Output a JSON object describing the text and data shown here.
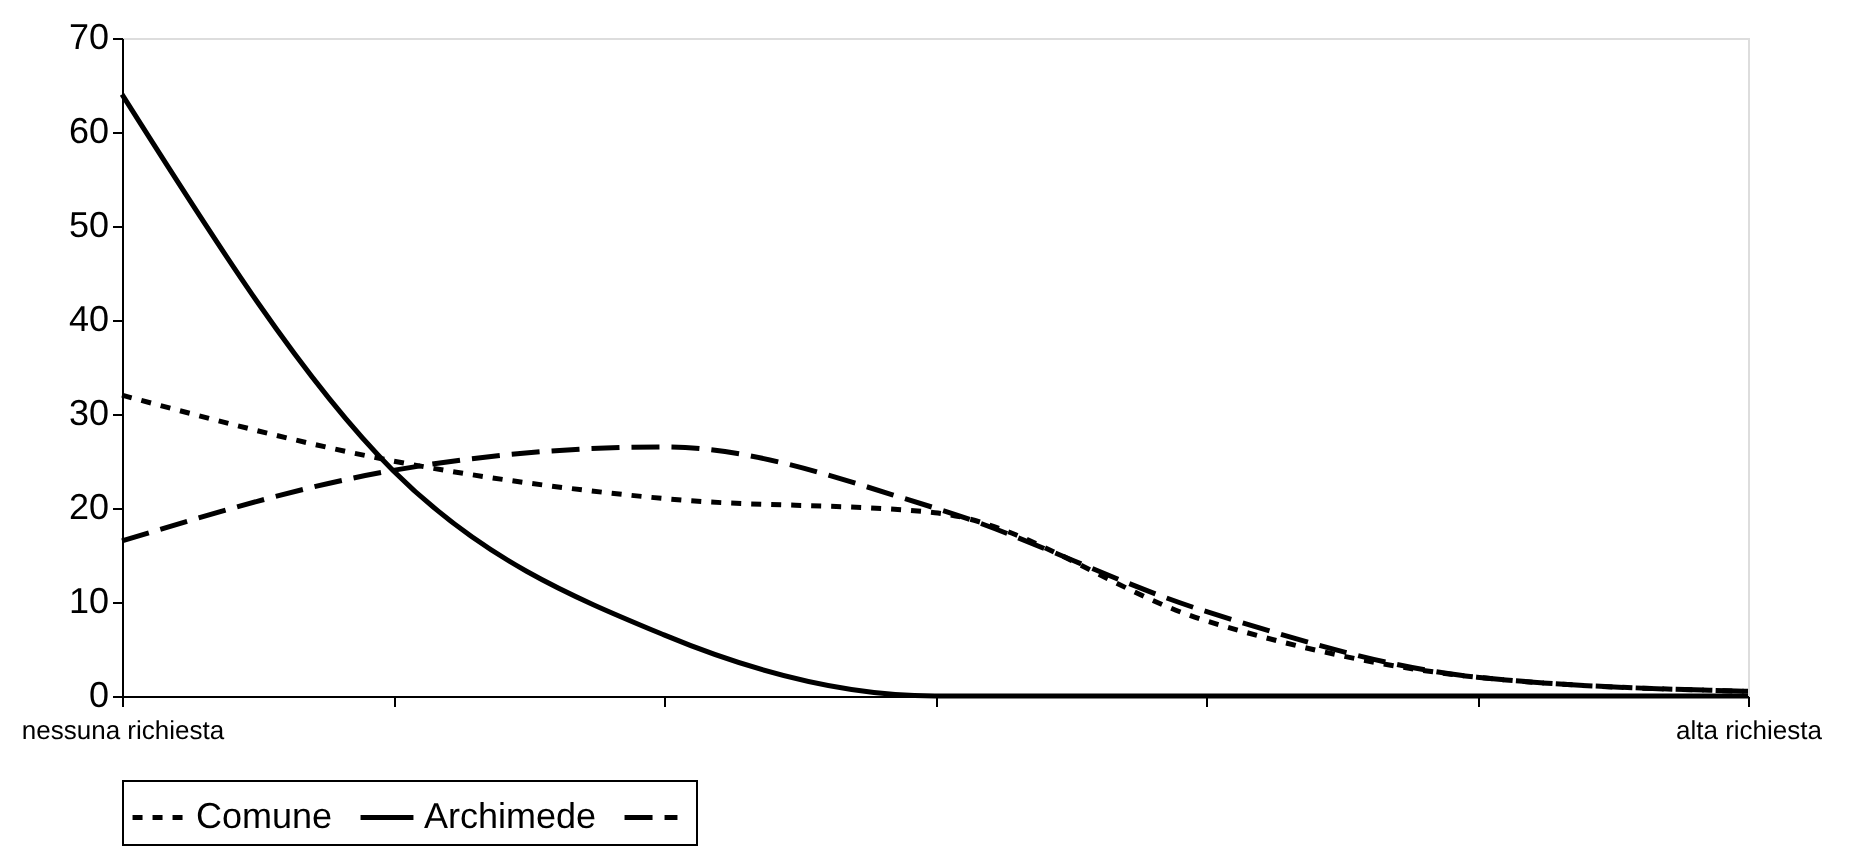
{
  "chart_data": {
    "type": "line",
    "categories": [
      "nessuna richiesta",
      null,
      null,
      null,
      null,
      null,
      "alta richiesta"
    ],
    "series": [
      {
        "name": "Comune",
        "color": "#000000",
        "line_style": "dotted",
        "values": [
          32,
          25,
          21,
          19.5,
          8,
          2,
          0.5
        ]
      },
      {
        "name": "Archimede",
        "color": "#000000",
        "line_style": "solid",
        "values": [
          64,
          24,
          6.5,
          0,
          0,
          0,
          0
        ]
      },
      {
        "color": "#000000",
        "line_style": "dashed",
        "values": [
          16.5,
          24,
          26.5,
          20,
          9,
          2,
          0.5
        ]
      }
    ],
    "ylim": [
      0,
      70
    ],
    "yticks": [
      0,
      10,
      20,
      30,
      40,
      50,
      60,
      70
    ],
    "grid": false,
    "legend": "bottom",
    "marker": "none"
  }
}
